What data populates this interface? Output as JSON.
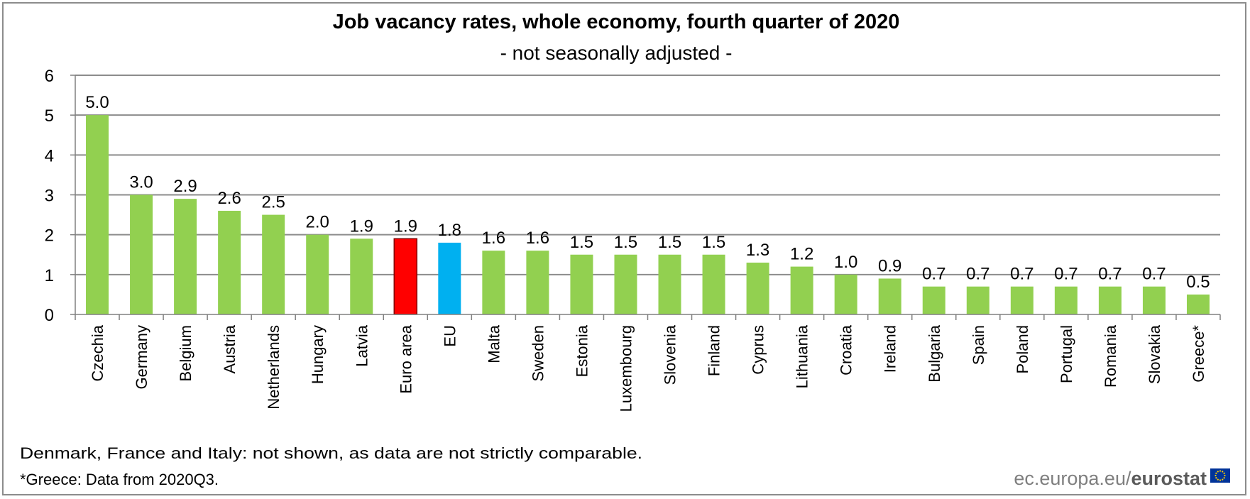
{
  "chart_data": {
    "type": "bar",
    "title": "Job vacancy rates, whole economy, fourth quarter of 2020",
    "subtitle": "- not seasonally adjusted -",
    "xlabel": "",
    "ylabel": "",
    "ylim": [
      0,
      6
    ],
    "yticks": [
      "0",
      "1",
      "2",
      "3",
      "4",
      "5",
      "6"
    ],
    "grid": true,
    "categories": [
      "Czechia",
      "Germany",
      "Belgium",
      "Austria",
      "Netherlands",
      "Hungary",
      "Latvia",
      "Euro area",
      "EU",
      "Malta",
      "Sweden",
      "Estonia",
      "Luxembourg",
      "Slovenia",
      "Finland",
      "Cyprus",
      "Lithuania",
      "Croatia",
      "Ireland",
      "Bulgaria",
      "Spain",
      "Poland",
      "Portugal",
      "Romania",
      "Slovakia",
      "Greece*"
    ],
    "values": [
      5.0,
      3.0,
      2.9,
      2.6,
      2.5,
      2.0,
      1.9,
      1.9,
      1.8,
      1.6,
      1.6,
      1.5,
      1.5,
      1.5,
      1.5,
      1.3,
      1.2,
      1.0,
      0.9,
      0.7,
      0.7,
      0.7,
      0.7,
      0.7,
      0.7,
      0.5
    ],
    "value_labels": [
      "5.0",
      "3.0",
      "2.9",
      "2.6",
      "2.5",
      "2.0",
      "1.9",
      "1.9",
      "1.8",
      "1.6",
      "1.6",
      "1.5",
      "1.5",
      "1.5",
      "1.5",
      "1.3",
      "1.2",
      "1.0",
      "0.9",
      "0.7",
      "0.7",
      "0.7",
      "0.7",
      "0.7",
      "0.7",
      "0.5"
    ],
    "bar_colors": {
      "default": "#92d050",
      "Euro area": "#ff0000",
      "EU": "#00b0f0"
    }
  },
  "footnotes": {
    "line1": "Denmark, France and Italy: not shown, as data are not strictly comparable.",
    "line2": "*Greece: Data from 2020Q3."
  },
  "branding": {
    "site": "ec.europa.eu/",
    "name": "eurostat"
  },
  "colors": {
    "gridline": "#8c8c8c",
    "axis": "#808080",
    "eu_flag_blue": "#003399",
    "eu_flag_star": "#ffcc00"
  }
}
